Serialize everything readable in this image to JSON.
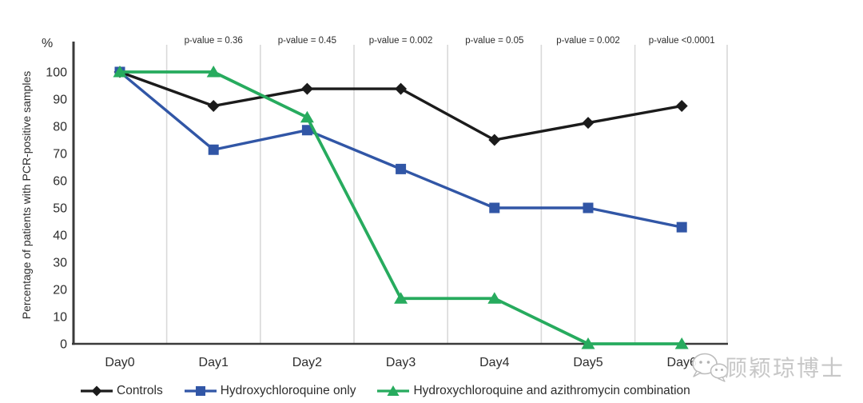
{
  "chart_data": {
    "type": "line",
    "title": "",
    "unit_label": "%",
    "ylabel": "Percentage of patients with PCR-positive samples",
    "xlabel": "",
    "categories": [
      "Day0",
      "Day1",
      "Day2",
      "Day3",
      "Day4",
      "Day5",
      "Day6"
    ],
    "ylim": [
      0,
      100
    ],
    "yticks": [
      0,
      10,
      20,
      30,
      40,
      50,
      60,
      70,
      80,
      90,
      100
    ],
    "grid": "vertical-between-categories",
    "legend_position": "bottom",
    "series": [
      {
        "name": "Controls",
        "marker": "diamond",
        "color": "#1b1b1b",
        "line_width": 3.4,
        "values": [
          100,
          87.5,
          93.8,
          93.8,
          75,
          81.3,
          87.5
        ]
      },
      {
        "name": "Hydroxychloroquine only",
        "marker": "square",
        "color": "#3156a6",
        "line_width": 3.4,
        "values": [
          100,
          71.4,
          78.6,
          64.3,
          50,
          50,
          42.9
        ]
      },
      {
        "name": "Hydroxychloroquine and azithromycin combination",
        "marker": "triangle",
        "color": "#27ab5e",
        "line_width": 3.8,
        "values": [
          100,
          100,
          83.3,
          16.7,
          16.7,
          0,
          0
        ]
      }
    ],
    "annotations": [
      {
        "x": "Day1",
        "label": "p-value = 0.36"
      },
      {
        "x": "Day2",
        "label": "p-value = 0.45"
      },
      {
        "x": "Day3",
        "label": "p-value = 0.002"
      },
      {
        "x": "Day4",
        "label": "p-value = 0.05"
      },
      {
        "x": "Day5",
        "label": "p-value = 0.002"
      },
      {
        "x": "Day6",
        "label": "p-value <0.0001"
      }
    ]
  },
  "watermark": {
    "text": "顾颖琼博士",
    "logo": "wechat-icon"
  },
  "colors": {
    "background": "#ffffff",
    "axis": "#3a3a3a",
    "grid": "#d9d9d9",
    "text": "#2d2d2d",
    "watermark": "#c0c0c0"
  }
}
